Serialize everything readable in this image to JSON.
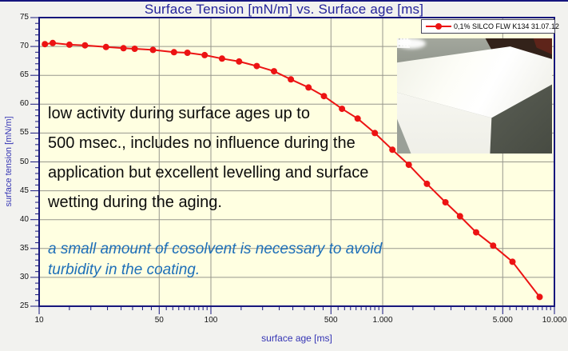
{
  "window": {
    "bg_color": "#f2f2ef",
    "accent_border_color": "#15157e"
  },
  "chart_data": {
    "type": "line",
    "title": "Surface Tension [mN/m] vs. Surface age [ms]",
    "xlabel": "surface age [ms]",
    "ylabel": "surface tension [mN/m]",
    "x_scale": "log",
    "xlim": [
      10,
      10000
    ],
    "ylim": [
      25,
      75
    ],
    "grid": true,
    "plot_bg_color": "#ffffe1",
    "grid_color": "#97978d",
    "border_color": "#16167c",
    "y_ticks": [
      75,
      70,
      65,
      60,
      55,
      50,
      45,
      40,
      35,
      30,
      25
    ],
    "x_major_ticks": [
      {
        "v": 10,
        "label": "10"
      },
      {
        "v": 50,
        "label": "50"
      },
      {
        "v": 100,
        "label": "100"
      },
      {
        "v": 500,
        "label": "500"
      },
      {
        "v": 1000,
        "label": "1.000"
      },
      {
        "v": 5000,
        "label": "5.000"
      },
      {
        "v": 10000,
        "label": "10.000"
      }
    ],
    "grid_x": [
      50,
      100,
      500,
      1000,
      5000
    ],
    "grid_y": [
      70,
      65,
      60,
      55,
      50,
      45,
      40,
      35,
      30
    ],
    "legend": {
      "label": "0,1% SILCO FLW K134 31.07.12",
      "position": "top-right",
      "marker": "red-dot-line"
    },
    "series": [
      {
        "name": "0,1% SILCO FLW K134 31.07.12",
        "color": "#ec1313",
        "points": [
          [
            10.8,
            70.4
          ],
          [
            12,
            70.6
          ],
          [
            15,
            70.3
          ],
          [
            18.5,
            70.2
          ],
          [
            24.5,
            69.9
          ],
          [
            31,
            69.7
          ],
          [
            36,
            69.6
          ],
          [
            46,
            69.4
          ],
          [
            61,
            69.0
          ],
          [
            73,
            68.9
          ],
          [
            92,
            68.5
          ],
          [
            116,
            67.9
          ],
          [
            146,
            67.4
          ],
          [
            185,
            66.6
          ],
          [
            233,
            65.7
          ],
          [
            292,
            64.3
          ],
          [
            370,
            62.9
          ],
          [
            455,
            61.4
          ],
          [
            580,
            59.2
          ],
          [
            715,
            57.5
          ],
          [
            900,
            55.0
          ],
          [
            1140,
            52.1
          ],
          [
            1420,
            49.5
          ],
          [
            1810,
            46.2
          ],
          [
            2320,
            43.0
          ],
          [
            2820,
            40.6
          ],
          [
            3500,
            37.8
          ],
          [
            4400,
            35.5
          ],
          [
            5700,
            32.7
          ],
          [
            8200,
            26.6
          ]
        ]
      }
    ]
  },
  "annotations": {
    "note_black": {
      "color": "#0c0c0c",
      "lines": [
        "low activity during surface ages up to",
        "500 msec., includes no influence during the",
        "application but excellent levelling and surface",
        "wetting during the aging."
      ]
    },
    "note_blue": {
      "color": "#1e6fb8",
      "lines": [
        "a small amount of cosolvent is necessary to avoid",
        "turbidity in the coating."
      ]
    }
  },
  "photo": {
    "description": "inset photograph of a glossy white coated table corner"
  }
}
